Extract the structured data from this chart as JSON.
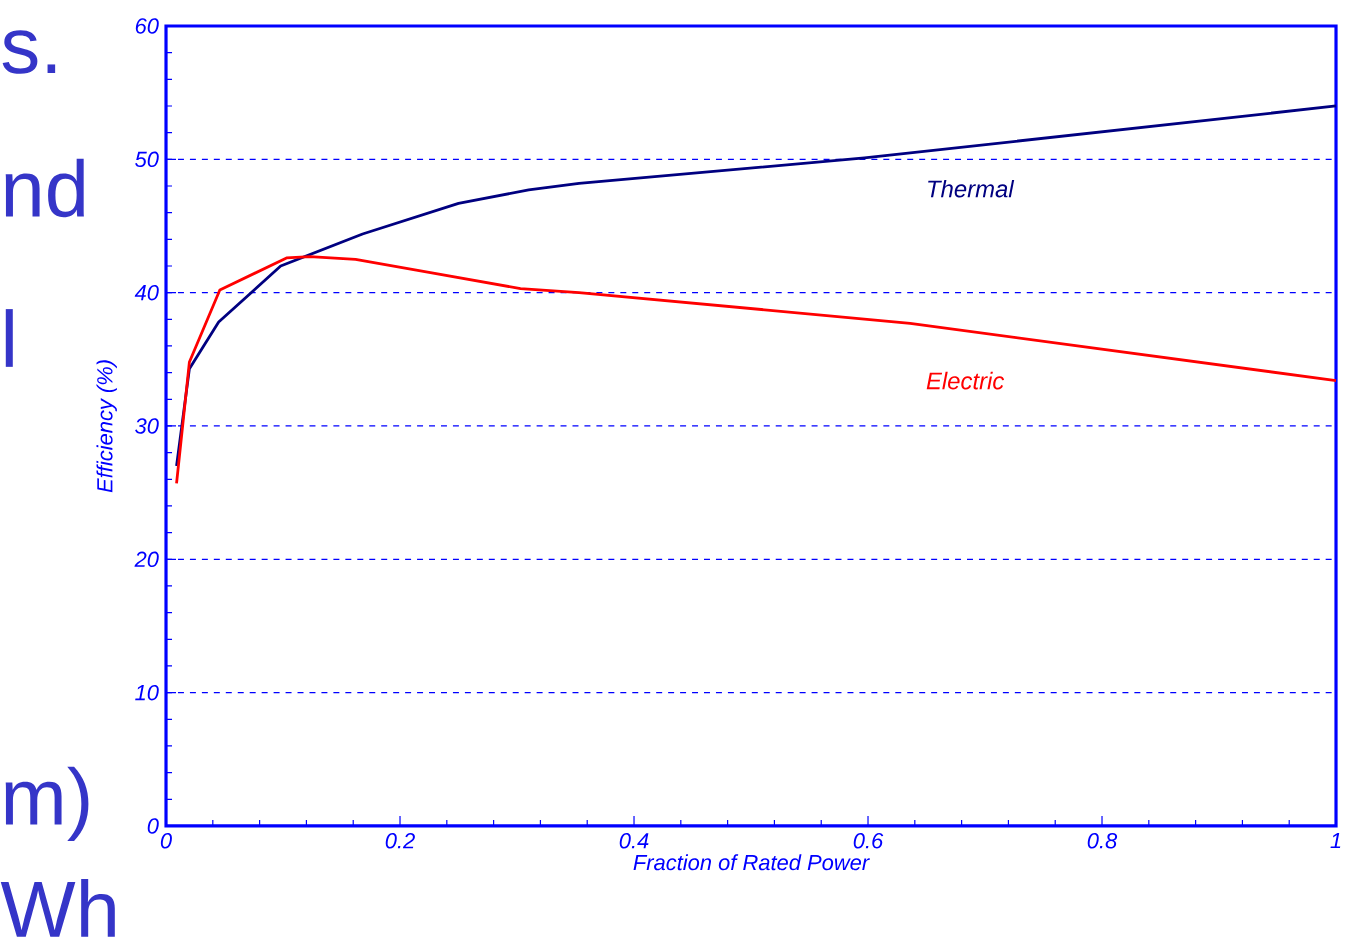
{
  "chart_data": {
    "type": "line",
    "xlabel": "Fraction of Rated Power",
    "ylabel": "Efficiency (%)",
    "xlim": [
      0,
      1
    ],
    "ylim": [
      0,
      60
    ],
    "xticks": [
      0,
      0.2,
      0.4,
      0.6,
      0.8,
      1
    ],
    "yticks": [
      0,
      10,
      20,
      30,
      40,
      50,
      60
    ],
    "grid": "y",
    "series": [
      {
        "name": "Thermal",
        "color": "#000080",
        "x": [
          0.009,
          0.02,
          0.045,
          0.098,
          0.168,
          0.25,
          0.31,
          0.353,
          0.597,
          1.0
        ],
        "values": [
          27,
          34.3,
          37.8,
          42,
          44.4,
          46.7,
          47.7,
          48.2,
          50.1,
          54.0
        ]
      },
      {
        "name": "Electric",
        "color": "#ff0000",
        "x": [
          0.009,
          0.02,
          0.046,
          0.103,
          0.123,
          0.162,
          0.226,
          0.303,
          0.353,
          0.636,
          1.0
        ],
        "values": [
          25.7,
          34.8,
          40.2,
          42.6,
          42.7,
          42.5,
          41.5,
          40.3,
          40.0,
          37.7,
          33.4
        ]
      }
    ],
    "annotations": [
      "s.",
      "nd",
      "l",
      "m)",
      "Wh"
    ]
  }
}
